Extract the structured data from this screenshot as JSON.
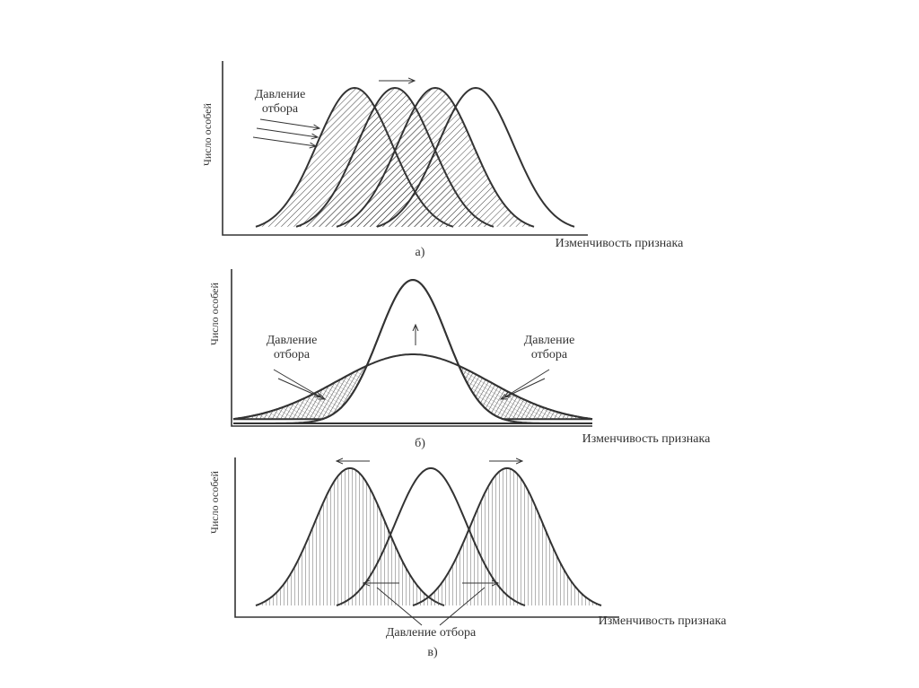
{
  "panels": [
    {
      "y_label": "Число особей",
      "x_label": "Изменчивость признака",
      "label": "а)",
      "annotation": [
        "Давление",
        "отбора"
      ]
    },
    {
      "y_label": "Число особей",
      "x_label": "Изменчивость признака",
      "label": "б)",
      "annotations": [
        [
          "Давление",
          "отбора"
        ],
        [
          "Давление",
          "отбора"
        ]
      ]
    },
    {
      "y_label": "Число особей",
      "x_label": "Изменчивость признака",
      "label": "в)",
      "annotation": "Давление отбора"
    }
  ]
}
